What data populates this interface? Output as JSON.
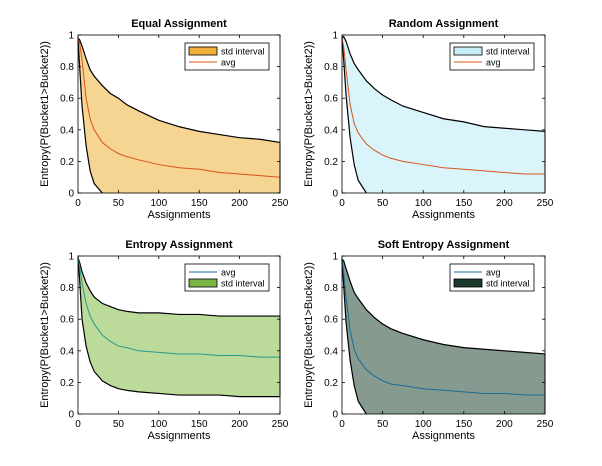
{
  "chart_data": [
    {
      "type": "area",
      "title": "Equal Assignment",
      "xlabel": "Assignments",
      "ylabel": "Entropy(P(Bucket1>Bucket2))",
      "xlim": [
        0,
        250
      ],
      "ylim": [
        0,
        1
      ],
      "xticks": [
        "0",
        "50",
        "100",
        "150",
        "200",
        "250"
      ],
      "yticks": [
        "0",
        "0.2",
        "0.4",
        "0.6",
        "0.8",
        "1"
      ],
      "grid": false,
      "legend_position": "top-right",
      "legend": [
        "std interval",
        "avg"
      ],
      "colors": {
        "band": "#f5d591",
        "band_legend": "#f0ae3a",
        "avg": "#d95319",
        "edge": "#000000"
      },
      "x": [
        0,
        2,
        5,
        10,
        15,
        20,
        30,
        40,
        50,
        60,
        75,
        100,
        125,
        150,
        175,
        200,
        225,
        250
      ],
      "avg": [
        0.98,
        0.95,
        0.84,
        0.6,
        0.47,
        0.4,
        0.32,
        0.28,
        0.25,
        0.23,
        0.21,
        0.18,
        0.16,
        0.15,
        0.13,
        0.12,
        0.11,
        0.1
      ],
      "upper": [
        0.98,
        0.97,
        0.93,
        0.85,
        0.78,
        0.74,
        0.68,
        0.63,
        0.6,
        0.56,
        0.52,
        0.46,
        0.42,
        0.39,
        0.37,
        0.35,
        0.34,
        0.32
      ],
      "lower": [
        0.98,
        0.8,
        0.55,
        0.3,
        0.14,
        0.06,
        0.0,
        null,
        null,
        null,
        null,
        null,
        null,
        null,
        null,
        null,
        null,
        null
      ]
    },
    {
      "type": "area",
      "title": "Random Assignment",
      "xlabel": "Assignments",
      "ylabel": "Entropy(P(Bucket1>Bucket2))",
      "xlim": [
        0,
        250
      ],
      "ylim": [
        0,
        1
      ],
      "xticks": [
        "0",
        "50",
        "100",
        "150",
        "200",
        "250"
      ],
      "yticks": [
        "0",
        "0.2",
        "0.4",
        "0.6",
        "0.8",
        "1"
      ],
      "grid": false,
      "legend_position": "top-right",
      "legend": [
        "std interval",
        "avg"
      ],
      "colors": {
        "band": "#d9f4fb",
        "band_legend": "#c9eef9",
        "avg": "#d95319",
        "edge": "#000000"
      },
      "x": [
        0,
        2,
        5,
        10,
        15,
        20,
        30,
        40,
        50,
        60,
        75,
        100,
        125,
        150,
        175,
        200,
        225,
        250
      ],
      "avg": [
        0.98,
        0.93,
        0.78,
        0.56,
        0.44,
        0.38,
        0.31,
        0.27,
        0.24,
        0.22,
        0.2,
        0.18,
        0.16,
        0.15,
        0.14,
        0.13,
        0.12,
        0.12
      ],
      "upper": [
        0.98,
        0.99,
        0.96,
        0.88,
        0.82,
        0.78,
        0.71,
        0.66,
        0.62,
        0.59,
        0.55,
        0.51,
        0.47,
        0.45,
        0.42,
        0.41,
        0.4,
        0.39
      ],
      "lower": [
        0.98,
        0.85,
        0.62,
        0.35,
        0.18,
        0.08,
        0.0,
        null,
        null,
        null,
        null,
        null,
        null,
        null,
        null,
        null,
        null,
        null
      ]
    },
    {
      "type": "area",
      "title": "Entropy Assignment",
      "xlabel": "Assignments",
      "ylabel": "Entropy(P(Bucket1>Bucket2))",
      "xlim": [
        0,
        250
      ],
      "ylim": [
        0,
        1
      ],
      "xticks": [
        "0",
        "50",
        "100",
        "150",
        "200",
        "250"
      ],
      "yticks": [
        "0",
        "0.2",
        "0.4",
        "0.6",
        "0.8",
        "1"
      ],
      "grid": false,
      "legend_position": "top-right",
      "legend": [
        "avg",
        "std interval"
      ],
      "colors": {
        "band": "#bcdb9a",
        "band_legend": "#7ab543",
        "avg": "#2a9a8a",
        "legend_avg": "#1a6a9a",
        "edge": "#000000"
      },
      "x": [
        0,
        2,
        5,
        10,
        15,
        20,
        30,
        40,
        50,
        60,
        75,
        100,
        125,
        150,
        175,
        200,
        225,
        250
      ],
      "avg": [
        0.99,
        0.93,
        0.83,
        0.7,
        0.62,
        0.57,
        0.5,
        0.46,
        0.43,
        0.42,
        0.4,
        0.39,
        0.38,
        0.38,
        0.37,
        0.37,
        0.36,
        0.36
      ],
      "upper": [
        0.99,
        0.96,
        0.9,
        0.83,
        0.78,
        0.74,
        0.7,
        0.68,
        0.66,
        0.65,
        0.64,
        0.64,
        0.63,
        0.63,
        0.62,
        0.62,
        0.62,
        0.62
      ],
      "lower": [
        0.99,
        0.85,
        0.6,
        0.43,
        0.33,
        0.27,
        0.21,
        0.18,
        0.16,
        0.15,
        0.14,
        0.13,
        0.12,
        0.12,
        0.12,
        0.11,
        0.11,
        0.11
      ]
    },
    {
      "type": "area",
      "title": "Soft Entropy Assignment",
      "xlabel": "Assignments",
      "ylabel": "Entropy(P(Bucket1>Bucket2))",
      "xlim": [
        0,
        250
      ],
      "ylim": [
        0,
        1
      ],
      "xticks": [
        "0",
        "50",
        "100",
        "150",
        "200",
        "250"
      ],
      "yticks": [
        "0",
        "0.2",
        "0.4",
        "0.6",
        "0.8",
        "1"
      ],
      "grid": false,
      "legend_position": "top-right",
      "legend": [
        "avg",
        "std interval"
      ],
      "colors": {
        "band": "#869a90",
        "band_legend": "#1a3a2c",
        "avg": "#1a6a9a",
        "edge": "#000000"
      },
      "x": [
        0,
        2,
        5,
        10,
        15,
        20,
        30,
        40,
        50,
        60,
        75,
        100,
        125,
        150,
        175,
        200,
        225,
        250
      ],
      "avg": [
        0.98,
        0.9,
        0.74,
        0.53,
        0.41,
        0.35,
        0.28,
        0.24,
        0.21,
        0.19,
        0.18,
        0.16,
        0.15,
        0.14,
        0.13,
        0.13,
        0.12,
        0.12
      ],
      "upper": [
        0.98,
        0.97,
        0.92,
        0.84,
        0.77,
        0.73,
        0.66,
        0.61,
        0.57,
        0.54,
        0.51,
        0.47,
        0.44,
        0.42,
        0.41,
        0.4,
        0.39,
        0.38
      ],
      "lower": [
        0.98,
        0.82,
        0.58,
        0.34,
        0.18,
        0.08,
        0.0,
        null,
        null,
        null,
        null,
        null,
        null,
        null,
        null,
        null,
        null,
        null
      ]
    }
  ]
}
